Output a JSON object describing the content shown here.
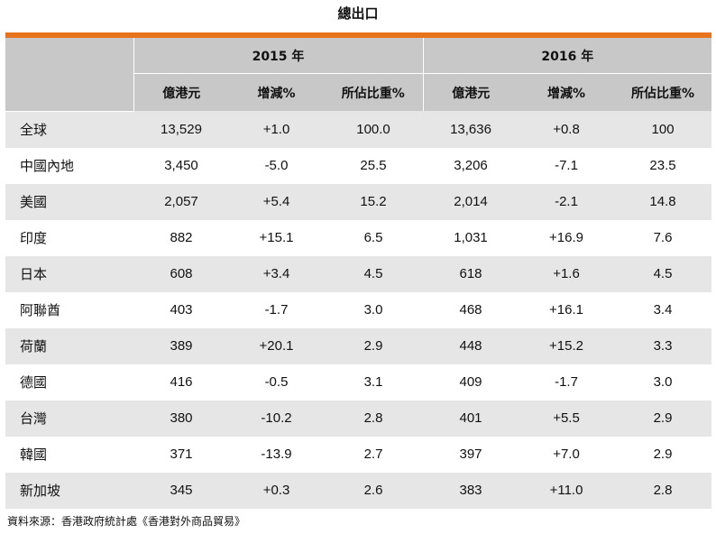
{
  "title": "總出口",
  "header": {
    "years": [
      "2015 年",
      "2016 年"
    ],
    "columns": [
      "億港元",
      "增減%",
      "所佔比重%",
      "億港元",
      "增減%",
      "所佔比重%"
    ]
  },
  "rows": [
    {
      "market": "全球",
      "v2015": "13,529",
      "c2015": "+1.0",
      "s2015": "100.0",
      "v2016": "13,636",
      "c2016": "+0.8",
      "s2016": "100"
    },
    {
      "market": "中國內地",
      "v2015": "3,450",
      "c2015": "-5.0",
      "s2015": "25.5",
      "v2016": "3,206",
      "c2016": "-7.1",
      "s2016": "23.5"
    },
    {
      "market": "美國",
      "v2015": "2,057",
      "c2015": "+5.4",
      "s2015": "15.2",
      "v2016": "2,014",
      "c2016": "-2.1",
      "s2016": "14.8"
    },
    {
      "market": "印度",
      "v2015": "882",
      "c2015": "+15.1",
      "s2015": "6.5",
      "v2016": "1,031",
      "c2016": "+16.9",
      "s2016": "7.6"
    },
    {
      "market": "日本",
      "v2015": "608",
      "c2015": "+3.4",
      "s2015": "4.5",
      "v2016": "618",
      "c2016": "+1.6",
      "s2016": "4.5"
    },
    {
      "market": "阿聯酋",
      "v2015": "403",
      "c2015": "-1.7",
      "s2015": "3.0",
      "v2016": "468",
      "c2016": "+16.1",
      "s2016": "3.4"
    },
    {
      "market": "荷蘭",
      "v2015": "389",
      "c2015": "+20.1",
      "s2015": "2.9",
      "v2016": "448",
      "c2016": "+15.2",
      "s2016": "3.3"
    },
    {
      "market": "德國",
      "v2015": "416",
      "c2015": "-0.5",
      "s2015": "3.1",
      "v2016": "409",
      "c2016": "-1.7",
      "s2016": "3.0"
    },
    {
      "market": "台灣",
      "v2015": "380",
      "c2015": "-10.2",
      "s2015": "2.8",
      "v2016": "401",
      "c2016": "+5.5",
      "s2016": "2.9"
    },
    {
      "market": "韓國",
      "v2015": "371",
      "c2015": "-13.9",
      "s2015": "2.7",
      "v2016": "397",
      "c2016": "+7.0",
      "s2016": "2.9"
    },
    {
      "market": "新加坡",
      "v2015": "345",
      "c2015": "+0.3",
      "s2015": "2.6",
      "v2016": "383",
      "c2016": "+11.0",
      "s2016": "2.8"
    }
  ],
  "source": "資料來源：香港政府統計處《香港對外商品貿易》",
  "colors": {
    "accent_rule": "#e8731e",
    "header_bg": "#c8c8c8",
    "stripe_bg": "#e6e6e6"
  }
}
